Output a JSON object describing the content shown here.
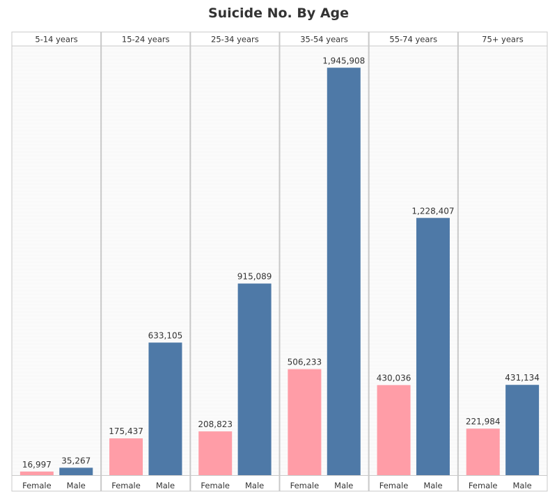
{
  "chart_data": {
    "type": "bar",
    "title": "Suicide No. By Age",
    "panels": [
      "5-14 years",
      "15-24 years",
      "25-34 years",
      "35-54 years",
      "55-74 years",
      "75+ years"
    ],
    "categories": [
      "Female",
      "Male"
    ],
    "values": [
      [
        16997,
        35267
      ],
      [
        175437,
        633105
      ],
      [
        208823,
        915089
      ],
      [
        506233,
        1945908
      ],
      [
        430036,
        1228407
      ],
      [
        221984,
        431134
      ]
    ],
    "value_labels": [
      [
        "16,997",
        "35,267"
      ],
      [
        "175,437",
        "633,105"
      ],
      [
        "208,823",
        "915,089"
      ],
      [
        "506,233",
        "1,945,908"
      ],
      [
        "430,036",
        "1,228,407"
      ],
      [
        "221,984",
        "431,134"
      ]
    ],
    "ylim": [
      0,
      2050000
    ],
    "grid": false,
    "colors": {
      "Female": "#FF9DA7",
      "Male": "#4E79A7"
    }
  }
}
